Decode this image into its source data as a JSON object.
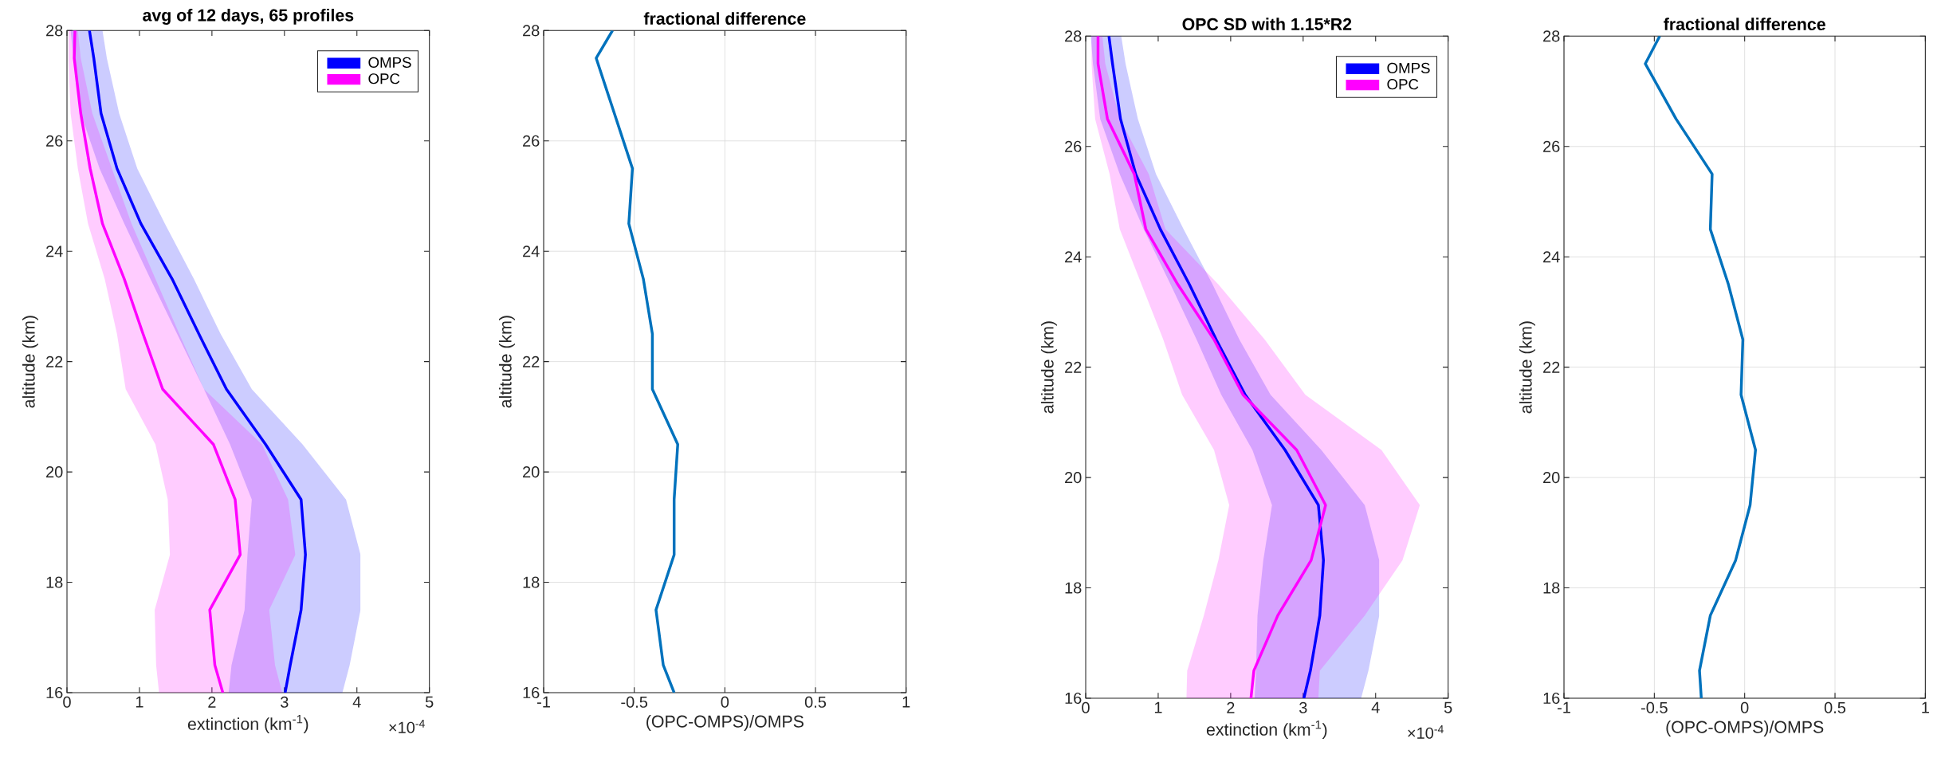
{
  "chart_data": [
    {
      "type": "line",
      "orientation": "horizontal",
      "title": "avg of 12 days, 65 profiles",
      "xlabel": "extinction (km$^{-1}$)",
      "ylabel": "altitude (km)",
      "annotations": [
        "×10$^{-4}$"
      ],
      "xlim": [
        0,
        5
      ],
      "ylim": [
        16,
        28
      ],
      "xticks": [
        0,
        1,
        2,
        3,
        4,
        5
      ],
      "yticks": [
        16,
        18,
        20,
        22,
        24,
        26,
        28
      ],
      "legend": "top right",
      "series": [
        {
          "name": "OMPS",
          "color": "#0000ff",
          "x": [
            16,
            16.5,
            17.5,
            18.5,
            19.5,
            20.5,
            21.5,
            22.5,
            23.5,
            24.5,
            25.5,
            26.5,
            27.5,
            28
          ],
          "values": [
            3.01,
            3.08,
            3.23,
            3.29,
            3.23,
            2.74,
            2.2,
            1.82,
            1.45,
            1.02,
            0.69,
            0.47,
            0.37,
            0.31
          ],
          "lower": [
            2.23,
            2.27,
            2.45,
            2.49,
            2.55,
            2.25,
            1.89,
            1.52,
            1.15,
            0.79,
            0.45,
            0.19,
            0.09,
            0.05
          ],
          "upper": [
            3.8,
            3.9,
            4.05,
            4.05,
            3.85,
            3.25,
            2.55,
            2.12,
            1.75,
            1.35,
            0.97,
            0.72,
            0.55,
            0.49
          ]
        },
        {
          "name": "OPC",
          "color": "#ff00ff",
          "x": [
            16,
            16.5,
            17.5,
            18.5,
            19.5,
            20.5,
            21.5,
            22.5,
            23.5,
            24.5,
            25.5,
            26.5,
            27.5,
            28
          ],
          "values": [
            2.15,
            2.04,
            1.97,
            2.39,
            2.32,
            2.02,
            1.32,
            1.05,
            0.79,
            0.49,
            0.32,
            0.19,
            0.1,
            0.11
          ],
          "lower": [
            1.27,
            1.23,
            1.21,
            1.42,
            1.39,
            1.22,
            0.81,
            0.69,
            0.52,
            0.29,
            0.15,
            0.05,
            0.02,
            0.02
          ],
          "upper": [
            2.97,
            2.87,
            2.79,
            3.15,
            3.05,
            2.69,
            1.89,
            1.55,
            1.22,
            0.89,
            0.62,
            0.35,
            0.19,
            0.15
          ]
        }
      ]
    },
    {
      "type": "line",
      "orientation": "horizontal",
      "title": "fractional difference",
      "xlabel": "(OPC-OMPS)/OMPS",
      "ylabel": "altitude (km)",
      "xlim": [
        -1,
        1
      ],
      "ylim": [
        16,
        28
      ],
      "xticks": [
        -1,
        -0.5,
        0,
        0.5,
        1
      ],
      "yticks": [
        16,
        18,
        20,
        22,
        24,
        26,
        28
      ],
      "grid": true,
      "series": [
        {
          "color": "#0072bd",
          "x": [
            16,
            16.5,
            17.5,
            18.5,
            19.5,
            20.5,
            21.5,
            22.5,
            23.5,
            24.5,
            25.5,
            27.5,
            28
          ],
          "values": [
            -0.28,
            -0.34,
            -0.38,
            -0.28,
            -0.28,
            -0.26,
            -0.4,
            -0.4,
            -0.45,
            -0.53,
            -0.51,
            -0.71,
            -0.62
          ]
        }
      ]
    },
    {
      "type": "line",
      "orientation": "horizontal",
      "title": "OPC SD with 1.15*R2",
      "xlabel": "extinction (km$^{-1}$)",
      "ylabel": "altitude (km)",
      "annotations": [
        "×10$^{-4}$"
      ],
      "xlim": [
        0,
        5
      ],
      "ylim": [
        16,
        28
      ],
      "xticks": [
        0,
        1,
        2,
        3,
        4,
        5
      ],
      "yticks": [
        16,
        18,
        20,
        22,
        24,
        26,
        28
      ],
      "legend": "top right",
      "series": [
        {
          "name": "OMPS",
          "color": "#0000ff",
          "x": [
            16,
            16.5,
            17.5,
            18.5,
            19.5,
            20.5,
            21.5,
            22.5,
            23.5,
            24.5,
            25.5,
            26.5,
            27.5,
            28
          ],
          "values": [
            3.01,
            3.1,
            3.23,
            3.28,
            3.21,
            2.75,
            2.2,
            1.8,
            1.43,
            1.03,
            0.69,
            0.48,
            0.37,
            0.32
          ],
          "lower": [
            2.33,
            2.35,
            2.37,
            2.45,
            2.57,
            2.3,
            1.87,
            1.53,
            1.17,
            0.8,
            0.47,
            0.2,
            0.1,
            0.07
          ],
          "upper": [
            3.8,
            3.9,
            4.05,
            4.05,
            3.85,
            3.25,
            2.55,
            2.12,
            1.75,
            1.35,
            0.97,
            0.72,
            0.55,
            0.49
          ]
        },
        {
          "name": "OPC",
          "color": "#ff00ff",
          "x": [
            16,
            16.5,
            17.5,
            18.5,
            19.5,
            20.5,
            21.5,
            22.5,
            23.5,
            24.5,
            25.5,
            26.5,
            27.5,
            28
          ],
          "values": [
            2.28,
            2.32,
            2.65,
            3.11,
            3.31,
            2.91,
            2.17,
            1.77,
            1.27,
            0.83,
            0.67,
            0.3,
            0.17,
            0.17
          ],
          "lower": [
            1.39,
            1.4,
            1.63,
            1.83,
            1.98,
            1.77,
            1.33,
            1.07,
            0.77,
            0.47,
            0.33,
            0.13,
            0.08,
            0.08
          ],
          "upper": [
            3.21,
            3.23,
            3.85,
            4.37,
            4.61,
            4.08,
            3.03,
            2.47,
            1.83,
            1.1,
            0.87,
            0.47,
            0.27,
            0.23
          ]
        }
      ]
    },
    {
      "type": "line",
      "orientation": "horizontal",
      "title": "fractional difference",
      "xlabel": "(OPC-OMPS)/OMPS",
      "ylabel": "altitude (km)",
      "xlim": [
        -1,
        1
      ],
      "ylim": [
        16,
        28
      ],
      "xticks": [
        -1,
        -0.5,
        0,
        0.5,
        1
      ],
      "yticks": [
        16,
        18,
        20,
        22,
        24,
        26,
        28
      ],
      "grid": true,
      "series": [
        {
          "color": "#0072bd",
          "x": [
            16,
            16.5,
            17.5,
            18.5,
            19.5,
            20.5,
            21.5,
            22.5,
            23.5,
            24.5,
            25.5,
            26.5,
            27.5,
            28
          ],
          "values": [
            -0.24,
            -0.25,
            -0.19,
            -0.05,
            0.03,
            0.06,
            -0.02,
            -0.01,
            -0.09,
            -0.19,
            -0.18,
            -0.38,
            -0.55,
            -0.47
          ]
        }
      ]
    }
  ]
}
